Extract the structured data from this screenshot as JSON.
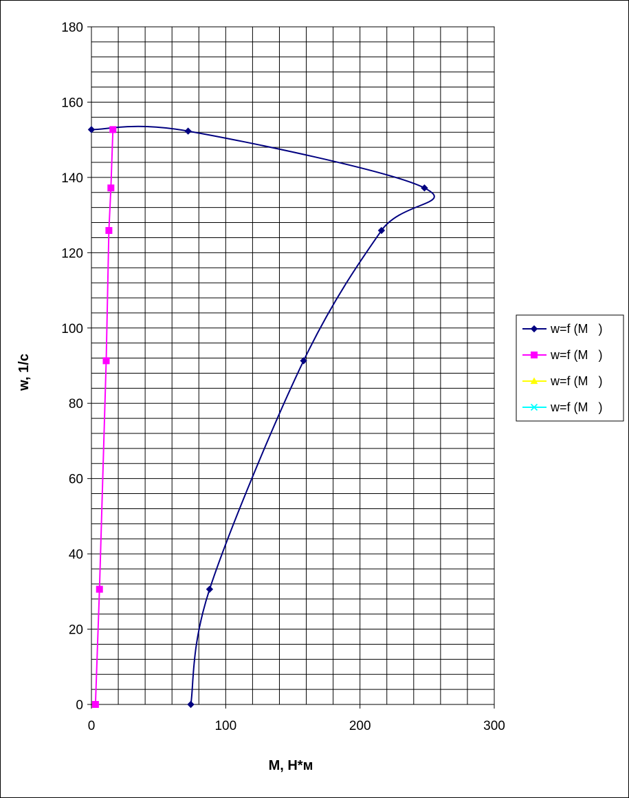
{
  "chart_data": {
    "type": "scatter",
    "title": "",
    "xlabel": "M, Н*м",
    "ylabel": "w, 1/c",
    "xlim": [
      0,
      300
    ],
    "ylim": [
      0,
      180
    ],
    "x_major_ticks": [
      0,
      100,
      200,
      300
    ],
    "y_major_ticks": [
      0,
      20,
      40,
      60,
      80,
      100,
      120,
      140,
      160,
      180
    ],
    "grid": true,
    "grid_minor_x_step": 20,
    "grid_minor_y_step": 4,
    "legend_position": "right",
    "series": [
      {
        "name": "w=f (M   )",
        "color": "#000080",
        "marker": "diamond",
        "smooth": true,
        "points": [
          {
            "x": 0,
            "y": 152.7
          },
          {
            "x": 72,
            "y": 152.3
          },
          {
            "x": 248,
            "y": 137.2
          },
          {
            "x": 216,
            "y": 125.9
          },
          {
            "x": 158,
            "y": 91.3
          },
          {
            "x": 88,
            "y": 30.6
          },
          {
            "x": 74,
            "y": 0
          }
        ]
      },
      {
        "name": "w=f (M   )",
        "color": "#FF00FF",
        "marker": "square",
        "smooth": false,
        "points": [
          {
            "x": 3,
            "y": 0
          },
          {
            "x": 6,
            "y": 30.6
          },
          {
            "x": 11,
            "y": 91.3
          },
          {
            "x": 13,
            "y": 125.9
          },
          {
            "x": 14.5,
            "y": 137.2
          },
          {
            "x": 16,
            "y": 152.7
          }
        ]
      },
      {
        "name": "w=f (M   )",
        "color": "#FFFF00",
        "marker": "triangle",
        "smooth": false,
        "points": []
      },
      {
        "name": "w=f (M   )",
        "color": "#00FFFF",
        "marker": "x",
        "smooth": false,
        "points": []
      }
    ]
  }
}
